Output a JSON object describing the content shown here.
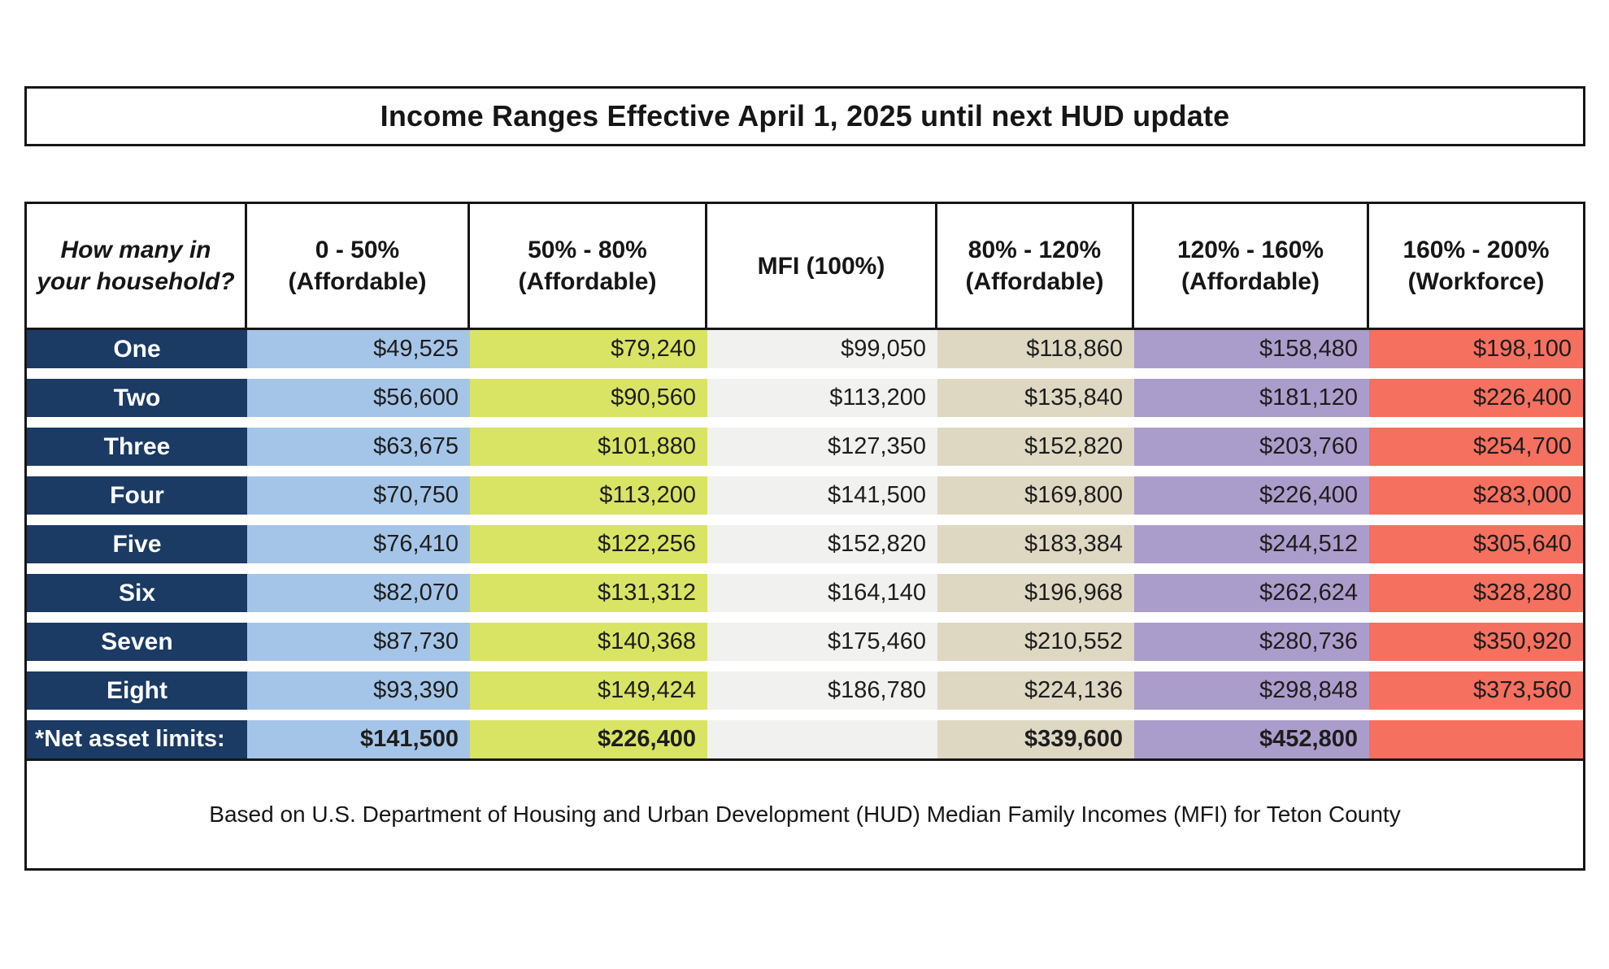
{
  "title": "Income Ranges Effective April 1, 2025 until next HUD update",
  "footer": "Based on U.S. Department of Housing and Urban Development (HUD) Median Family Incomes (MFI) for Teton County",
  "colors": {
    "border": "#161616",
    "label_column_navy": "#1b3a64",
    "col_0_50_blue": "#a5c5e8",
    "col_50_80_yellow_green": "#d9e465",
    "col_mfi_light_gray": "#f1f1ef",
    "col_80_120_tan": "#ded8c3",
    "col_120_160_purple": "#ab9dcb",
    "col_160_200_red": "#f5705f"
  },
  "table": {
    "columns": [
      {
        "label": "How many in your household?",
        "color": "#1b3a64"
      },
      {
        "label": "0 - 50%\n(Affordable)",
        "color": "#a5c5e8"
      },
      {
        "label": "50% - 80%\n(Affordable)",
        "color": "#d9e465"
      },
      {
        "label": "MFI (100%)",
        "color": "#f1f1ef"
      },
      {
        "label": "80% - 120%\n(Affordable)",
        "color": "#ded8c3"
      },
      {
        "label": "120% - 160%\n(Affordable)",
        "color": "#ab9dcb"
      },
      {
        "label": "160% - 200%\n(Workforce)",
        "color": "#f5705f"
      }
    ],
    "rows": [
      {
        "label": "One",
        "values": [
          "$49,525",
          "$79,240",
          "$99,050",
          "$118,860",
          "$158,480",
          "$198,100"
        ]
      },
      {
        "label": "Two",
        "values": [
          "$56,600",
          "$90,560",
          "$113,200",
          "$135,840",
          "$181,120",
          "$226,400"
        ]
      },
      {
        "label": "Three",
        "values": [
          "$63,675",
          "$101,880",
          "$127,350",
          "$152,820",
          "$203,760",
          "$254,700"
        ]
      },
      {
        "label": "Four",
        "values": [
          "$70,750",
          "$113,200",
          "$141,500",
          "$169,800",
          "$226,400",
          "$283,000"
        ]
      },
      {
        "label": "Five",
        "values": [
          "$76,410",
          "$122,256",
          "$152,820",
          "$183,384",
          "$244,512",
          "$305,640"
        ]
      },
      {
        "label": "Six",
        "values": [
          "$82,070",
          "$131,312",
          "$164,140",
          "$196,968",
          "$262,624",
          "$328,280"
        ]
      },
      {
        "label": "Seven",
        "values": [
          "$87,730",
          "$140,368",
          "$175,460",
          "$210,552",
          "$280,736",
          "$350,920"
        ]
      },
      {
        "label": "Eight",
        "values": [
          "$93,390",
          "$149,424",
          "$186,780",
          "$224,136",
          "$298,848",
          "$373,560"
        ]
      }
    ],
    "net_asset_row": {
      "label": "*Net asset limits:",
      "values": [
        "$141,500",
        "$226,400",
        "",
        "$339,600",
        "$452,800",
        ""
      ]
    }
  }
}
